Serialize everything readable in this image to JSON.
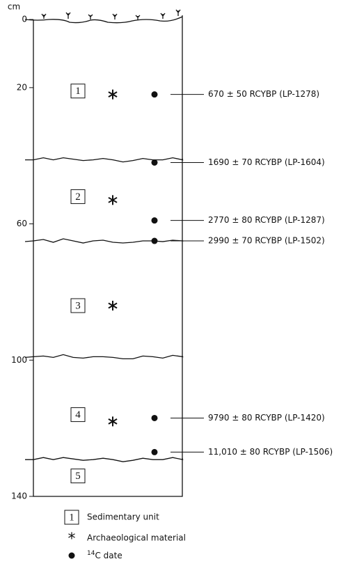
{
  "depth_axis": {
    "unit": "cm",
    "lim": [
      0,
      140
    ],
    "ticks": [
      0,
      20,
      60,
      100,
      140
    ]
  },
  "boundaries": [
    41,
    65,
    99,
    129
  ],
  "units": [
    {
      "label": "1",
      "depth": 21
    },
    {
      "label": "2",
      "depth": 52
    },
    {
      "label": "3",
      "depth": 84
    },
    {
      "label": "4",
      "depth": 116
    },
    {
      "label": "5",
      "depth": 134
    }
  ],
  "archaeological_material": [
    22,
    53,
    84,
    118
  ],
  "dates": [
    {
      "depth": 22,
      "label": "670 ± 50 RCYBP (LP-1278)"
    },
    {
      "depth": 42,
      "label": "1690 ± 70 RCYBP (LP-1604)"
    },
    {
      "depth": 59,
      "label": "2770 ± 80 RCYBP (LP-1287)"
    },
    {
      "depth": 65,
      "label": "2990 ± 70 RCYBP (LP-1502)"
    },
    {
      "depth": 117,
      "label": "9790 ± 80 RCYBP (LP-1420)"
    },
    {
      "depth": 127,
      "label": "11,010 ± 80 RCYBP (LP-1506)"
    }
  ],
  "legend": {
    "unit_symbol": "1",
    "unit_text": "Sedimentary unit",
    "artifact_text": "Archaeological material",
    "date_sup": "14",
    "date_text": "C date"
  }
}
